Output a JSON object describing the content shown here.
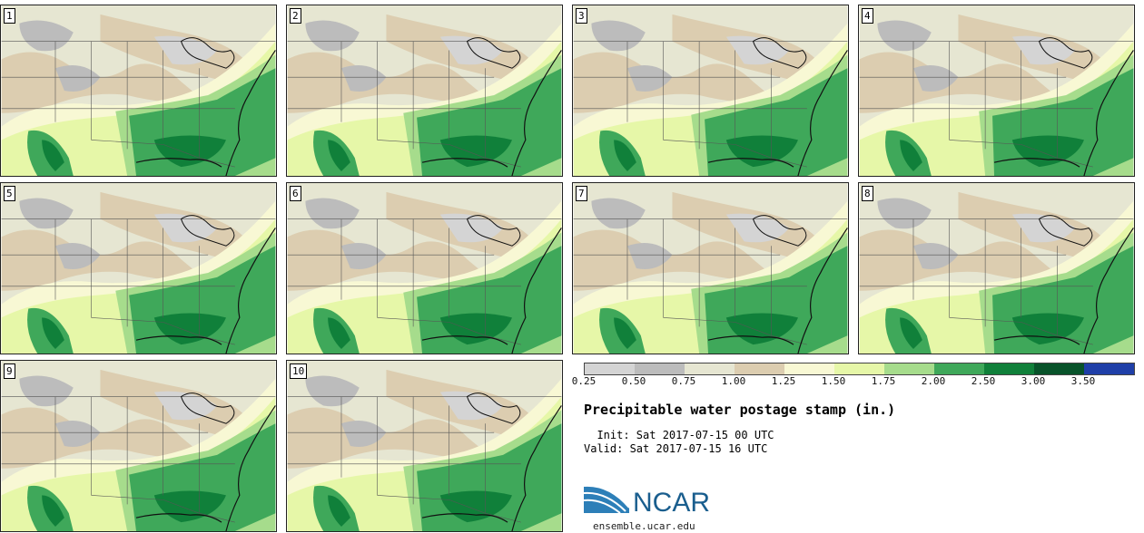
{
  "panels": [
    {
      "label": "1"
    },
    {
      "label": "2"
    },
    {
      "label": "3"
    },
    {
      "label": "4"
    },
    {
      "label": "5"
    },
    {
      "label": "6"
    },
    {
      "label": "7"
    },
    {
      "label": "8"
    },
    {
      "label": "9"
    },
    {
      "label": "10"
    }
  ],
  "colorbar": {
    "colors": [
      "#d4d4d4",
      "#bcbcbc",
      "#e6e6d2",
      "#dccdb0",
      "#f8f8d4",
      "#e6f7a8",
      "#a6dc8c",
      "#3fa85a",
      "#10803a",
      "#08532a",
      "#1f3fa8"
    ],
    "tick_labels": [
      "0.25",
      "0.50",
      "0.75",
      "1.00",
      "1.25",
      "1.50",
      "1.75",
      "2.00",
      "2.50",
      "3.00",
      "3.50"
    ]
  },
  "title": "Precipitable water postage stamp (in.)",
  "init": "  Init: Sat 2017-07-15 00 UTC",
  "valid": "Valid: Sat 2017-07-15 16 UTC",
  "logo_text": "NCAR",
  "site": "ensemble.ucar.edu"
}
